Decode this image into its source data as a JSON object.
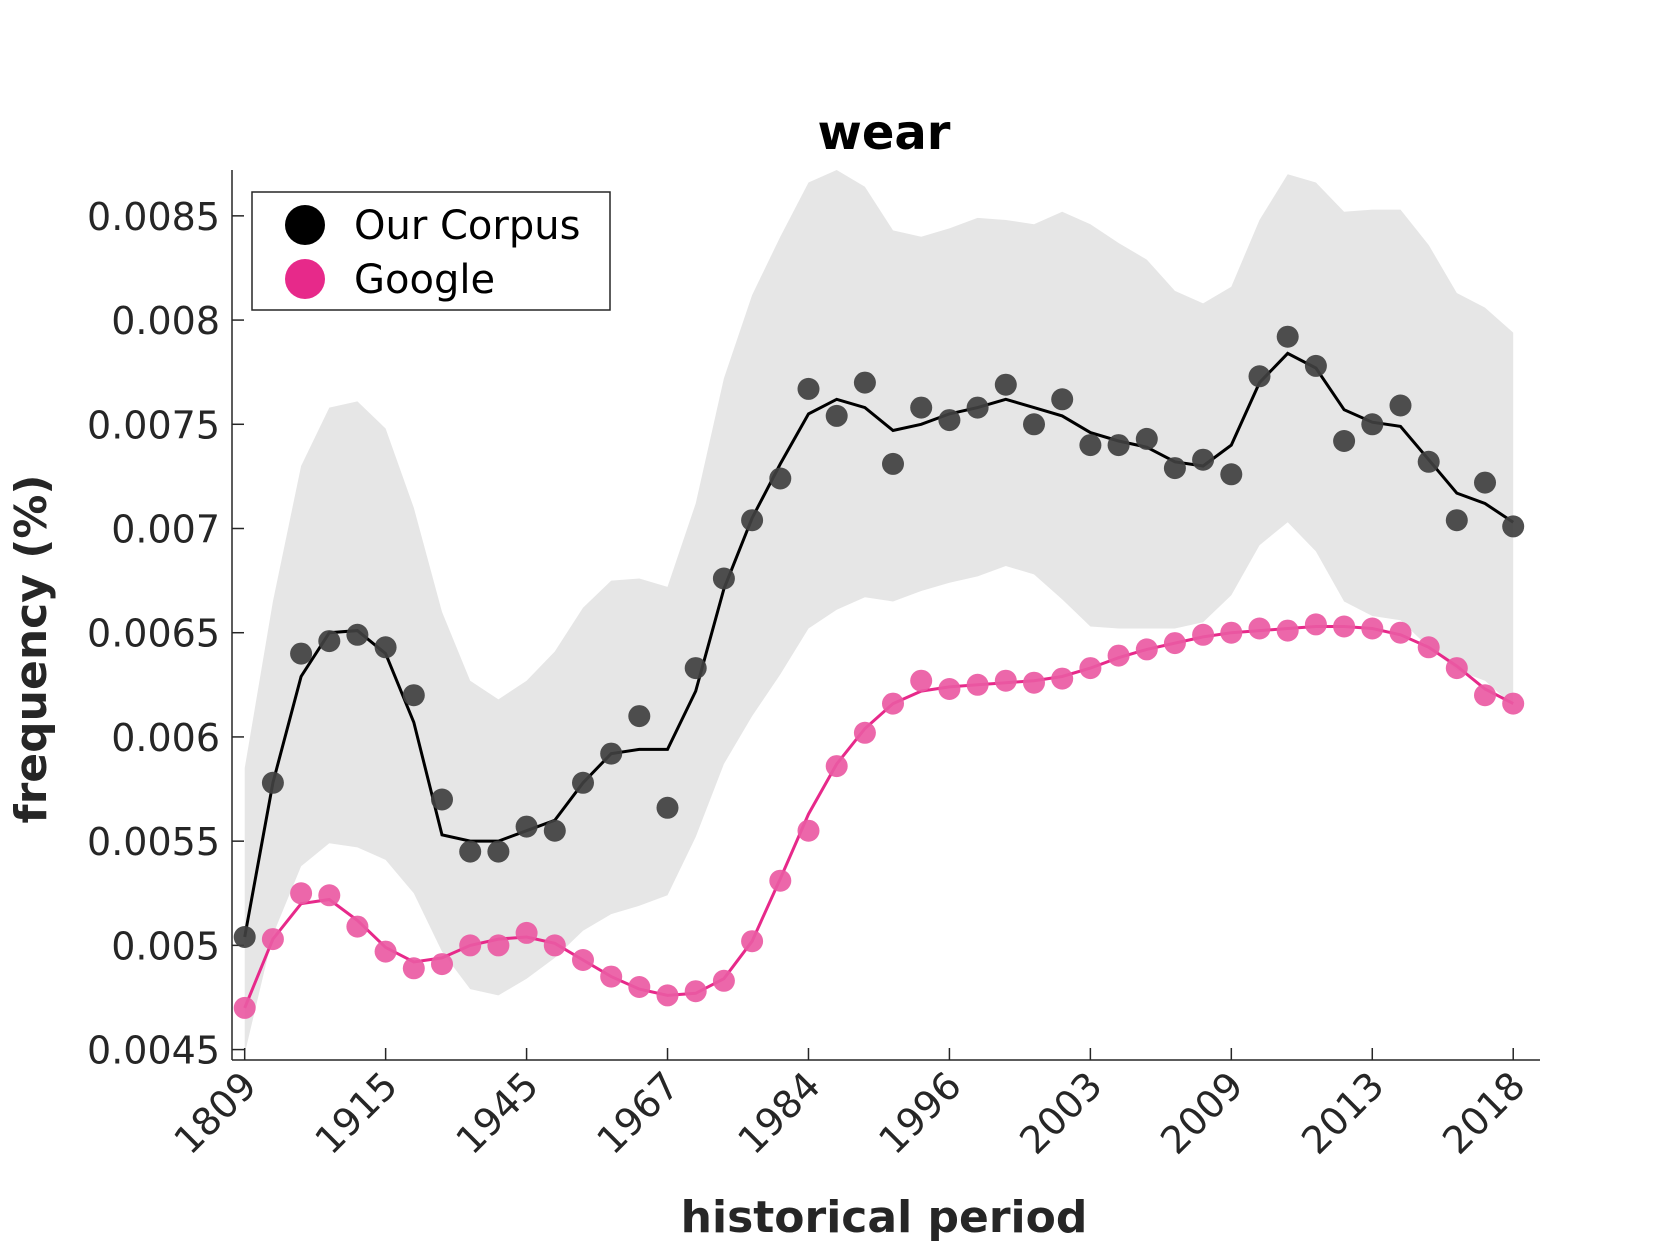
{
  "chart_data": {
    "type": "scatter",
    "title": "wear",
    "xlabel": "historical period",
    "ylabel": "frequency (%)",
    "ylim": [
      0.00445,
      0.00872
    ],
    "yticks": [
      0.0045,
      0.005,
      0.0055,
      0.006,
      0.0065,
      0.007,
      0.0075,
      0.008,
      0.0085
    ],
    "ytick_labels": [
      "0.0045",
      "0.005",
      "0.0055",
      "0.006",
      "0.0065",
      "0.007",
      "0.0075",
      "0.008",
      "0.0085"
    ],
    "xtick_labels": [
      "1809",
      "1915",
      "1945",
      "1967",
      "1984",
      "1996",
      "2003",
      "2009",
      "2013",
      "2018"
    ],
    "xtick_positions": [
      1,
      6,
      11,
      16,
      21,
      26,
      31,
      36,
      41,
      46
    ],
    "x": [
      1,
      2,
      3,
      4,
      5,
      6,
      7,
      8,
      9,
      10,
      11,
      12,
      13,
      14,
      15,
      16,
      17,
      18,
      19,
      20,
      21,
      22,
      23,
      24,
      25,
      26,
      27,
      28,
      29,
      30,
      31,
      32,
      33,
      34,
      35,
      36,
      37,
      38,
      39,
      40,
      41,
      42,
      43,
      44,
      45,
      46
    ],
    "legend": {
      "position": "top-left"
    },
    "grid": false,
    "series": [
      {
        "name": "Our Corpus",
        "color": "#000000",
        "marker_color": "#404040",
        "points": [
          0.00504,
          0.00578,
          0.0064,
          0.00646,
          0.00649,
          0.00643,
          0.0062,
          0.0057,
          0.00545,
          0.00545,
          0.00557,
          0.00555,
          0.00578,
          0.00592,
          0.0061,
          0.00566,
          0.00633,
          0.00676,
          0.00704,
          0.00724,
          0.00767,
          0.00754,
          0.0077,
          0.00731,
          0.00758,
          0.00752,
          0.00758,
          0.00769,
          0.0075,
          0.00762,
          0.0074,
          0.0074,
          0.00743,
          0.00729,
          0.00733,
          0.00726,
          0.00773,
          0.00792,
          0.00778,
          0.00742,
          0.0075,
          0.00759,
          0.00732,
          0.00704,
          0.00722,
          0.00701
        ],
        "line": [
          0.00504,
          0.00578,
          0.00629,
          0.0065,
          0.00651,
          0.0064,
          0.00607,
          0.00553,
          0.0055,
          0.0055,
          0.00555,
          0.0056,
          0.00578,
          0.00592,
          0.00594,
          0.00594,
          0.00622,
          0.00671,
          0.00705,
          0.00731,
          0.00755,
          0.00762,
          0.00758,
          0.00747,
          0.0075,
          0.00755,
          0.00758,
          0.00762,
          0.00758,
          0.00754,
          0.00746,
          0.00742,
          0.00739,
          0.00732,
          0.0073,
          0.0074,
          0.0077,
          0.00784,
          0.00777,
          0.00757,
          0.00751,
          0.00749,
          0.00733,
          0.00717,
          0.00712,
          0.00703
        ],
        "band_upper": [
          0.00585,
          0.00665,
          0.0073,
          0.00758,
          0.00761,
          0.00748,
          0.0071,
          0.0066,
          0.00627,
          0.00618,
          0.00627,
          0.00641,
          0.00662,
          0.00675,
          0.00676,
          0.00672,
          0.00712,
          0.00772,
          0.00812,
          0.0084,
          0.00866,
          0.00872,
          0.00864,
          0.00843,
          0.0084,
          0.00844,
          0.00849,
          0.00848,
          0.00846,
          0.00852,
          0.00846,
          0.00837,
          0.00829,
          0.00814,
          0.00808,
          0.00816,
          0.00848,
          0.0087,
          0.00866,
          0.00852,
          0.00853,
          0.00853,
          0.00836,
          0.00813,
          0.00806,
          0.00794
        ],
        "band_lower": [
          0.00448,
          0.00505,
          0.00538,
          0.00549,
          0.00547,
          0.00541,
          0.00525,
          0.00497,
          0.00479,
          0.00476,
          0.00484,
          0.00494,
          0.00507,
          0.00515,
          0.00519,
          0.00524,
          0.00552,
          0.00587,
          0.0061,
          0.0063,
          0.00652,
          0.00661,
          0.00667,
          0.00665,
          0.0067,
          0.00674,
          0.00677,
          0.00682,
          0.00678,
          0.00666,
          0.00653,
          0.00652,
          0.00652,
          0.00652,
          0.00655,
          0.00668,
          0.00692,
          0.00703,
          0.00689,
          0.00665,
          0.00658,
          0.00656,
          0.00643,
          0.00632,
          0.00627,
          0.00615
        ]
      },
      {
        "name": "Google",
        "color": "#e7298a",
        "marker_color": "#ea5aa3",
        "points": [
          0.0047,
          0.00503,
          0.00525,
          0.00524,
          0.00509,
          0.00497,
          0.00489,
          0.00491,
          0.005,
          0.005,
          0.00506,
          0.005,
          0.00493,
          0.00485,
          0.0048,
          0.00476,
          0.00478,
          0.00483,
          0.00502,
          0.00531,
          0.00555,
          0.00586,
          0.00602,
          0.00616,
          0.00627,
          0.00623,
          0.00625,
          0.00627,
          0.00626,
          0.00628,
          0.00633,
          0.00639,
          0.00642,
          0.00645,
          0.00649,
          0.0065,
          0.00652,
          0.00651,
          0.00654,
          0.00653,
          0.00652,
          0.0065,
          0.00643,
          0.00633,
          0.0062,
          0.00616
        ],
        "line": [
          0.0047,
          0.00503,
          0.0052,
          0.00522,
          0.00512,
          0.00499,
          0.00492,
          0.00494,
          0.005,
          0.00503,
          0.00504,
          0.00501,
          0.00493,
          0.00485,
          0.00479,
          0.00476,
          0.00477,
          0.00484,
          0.00502,
          0.00532,
          0.00563,
          0.00587,
          0.00604,
          0.00616,
          0.00622,
          0.00624,
          0.00625,
          0.00626,
          0.00627,
          0.00629,
          0.00633,
          0.00638,
          0.00642,
          0.00645,
          0.00648,
          0.0065,
          0.00651,
          0.00652,
          0.00653,
          0.00653,
          0.00652,
          0.00649,
          0.00643,
          0.00634,
          0.00623,
          0.00616
        ]
      }
    ]
  }
}
